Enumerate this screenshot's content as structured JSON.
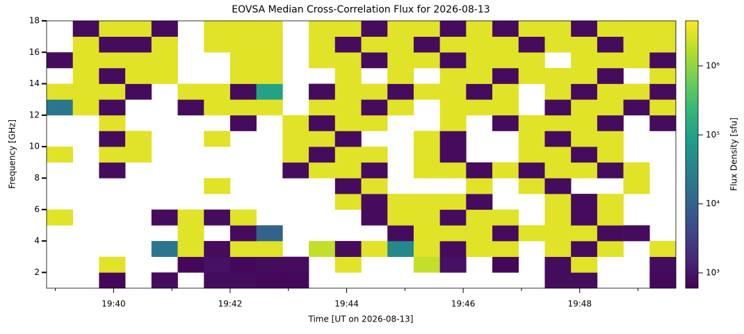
{
  "chart_data": {
    "type": "heatmap",
    "title": "EOVSA Median Cross-Correlation Flux for 2026-08-13",
    "x_label": "Time [UT on 2026-08-13]",
    "y_label": "Frequency [GHz]",
    "colorbar_label": "Flux Density [sfu]",
    "xlim": [
      38.85,
      49.65
    ],
    "xticks": [
      {
        "value": 40,
        "label": "19:40"
      },
      {
        "value": 42,
        "label": "19:42"
      },
      {
        "value": 44,
        "label": "19:44"
      },
      {
        "value": 46,
        "label": "19:46"
      },
      {
        "value": 48,
        "label": "19:48"
      }
    ],
    "xminorticks": [
      39,
      41,
      43,
      45,
      47,
      49
    ],
    "ylim": [
      1,
      18
    ],
    "yticks": [
      2,
      4,
      6,
      8,
      10,
      12,
      14,
      16,
      18
    ],
    "x_edges": [
      38.85,
      39.3,
      39.75,
      40.2,
      40.65,
      41.1,
      41.55,
      42.0,
      42.45,
      42.9,
      43.35,
      43.8,
      44.25,
      44.7,
      45.15,
      45.6,
      46.05,
      46.5,
      46.95,
      47.4,
      47.85,
      48.3,
      48.75,
      49.2,
      49.65
    ],
    "y_edges": [
      1,
      2,
      3,
      4,
      5,
      6,
      7,
      8,
      9,
      10,
      11,
      12,
      13,
      14,
      15,
      16,
      17,
      18
    ],
    "colormap": "viridis",
    "color_scale": "log",
    "clim": [
      600,
      4500000.0
    ],
    "cticks": [
      {
        "value": 1000,
        "label": "10³"
      },
      {
        "value": 10000,
        "label": "10⁴"
      },
      {
        "value": 100000,
        "label": "10⁵"
      },
      {
        "value": 1000000,
        "label": "10⁶"
      }
    ],
    "z": [
      [
        null,
        null,
        700,
        null,
        800,
        null,
        800,
        800,
        700,
        700,
        null,
        null,
        null,
        null,
        null,
        null,
        null,
        null,
        null,
        800,
        800,
        null,
        null,
        700
      ],
      [
        null,
        null,
        3000000.0,
        null,
        null,
        700,
        900,
        700,
        800,
        800,
        null,
        3000000.0,
        null,
        null,
        2000000.0,
        900,
        null,
        700,
        null,
        800,
        3000000.0,
        null,
        null,
        800
      ],
      [
        null,
        null,
        null,
        null,
        20000.0,
        3000000.0,
        800,
        3000000.0,
        3000000.0,
        null,
        2000000.0,
        800,
        3000000.0,
        40000.0,
        3000000.0,
        800,
        3000000.0,
        3000000.0,
        null,
        3000000.0,
        800,
        3000000.0,
        null,
        3000000.0
      ],
      [
        null,
        null,
        null,
        null,
        null,
        3000000.0,
        null,
        800,
        10000.0,
        null,
        null,
        null,
        null,
        800,
        3000000.0,
        3000000.0,
        3000000.0,
        800,
        3000000.0,
        3000000.0,
        3000000.0,
        800,
        800,
        null
      ],
      [
        3000000.0,
        null,
        null,
        null,
        800,
        3000000.0,
        800,
        3000000.0,
        null,
        null,
        null,
        null,
        800,
        3000000.0,
        3000000.0,
        800,
        3000000.0,
        3000000.0,
        null,
        3000000.0,
        800,
        3000000.0,
        null,
        null
      ],
      [
        null,
        null,
        null,
        null,
        null,
        null,
        null,
        null,
        null,
        null,
        null,
        3000000.0,
        800,
        3000000.0,
        3000000.0,
        3000000.0,
        800,
        null,
        null,
        3000000.0,
        800,
        3000000.0,
        null,
        null
      ],
      [
        null,
        null,
        null,
        null,
        null,
        null,
        3000000.0,
        null,
        null,
        null,
        null,
        800,
        3000000.0,
        null,
        null,
        null,
        3000000.0,
        null,
        3000000.0,
        800,
        null,
        null,
        3000000.0,
        null
      ],
      [
        null,
        null,
        800,
        null,
        null,
        null,
        null,
        null,
        null,
        800,
        3000000.0,
        3000000.0,
        800,
        null,
        3000000.0,
        3000000.0,
        800,
        3000000.0,
        800,
        3000000.0,
        3000000.0,
        800,
        3000000.0,
        null
      ],
      [
        3000000.0,
        null,
        3000000.0,
        3000000.0,
        null,
        null,
        null,
        null,
        null,
        3000000.0,
        800,
        3000000.0,
        3000000.0,
        null,
        3000000.0,
        800,
        null,
        null,
        3000000.0,
        3000000.0,
        800,
        3000000.0,
        null,
        null
      ],
      [
        null,
        null,
        800,
        3000000.0,
        null,
        null,
        3000000.0,
        null,
        null,
        3000000.0,
        3000000.0,
        800,
        null,
        null,
        3000000.0,
        800,
        null,
        null,
        3000000.0,
        800,
        3000000.0,
        3000000.0,
        null,
        null
      ],
      [
        null,
        null,
        3000000.0,
        null,
        null,
        null,
        null,
        800,
        null,
        3000000.0,
        800,
        3000000.0,
        3000000.0,
        null,
        null,
        3000000.0,
        null,
        800,
        3000000.0,
        3000000.0,
        3000000.0,
        800,
        null,
        800
      ],
      [
        20000.0,
        3000000.0,
        800,
        null,
        null,
        800,
        3000000.0,
        3000000.0,
        3000000.0,
        null,
        3000000.0,
        3000000.0,
        800,
        3000000.0,
        null,
        3000000.0,
        3000000.0,
        3000000.0,
        null,
        800,
        3000000.0,
        3000000.0,
        800,
        3000000.0
      ],
      [
        3000000.0,
        3000000.0,
        3000000.0,
        800,
        null,
        3000000.0,
        3000000.0,
        800,
        100000.0,
        null,
        800,
        3000000.0,
        3000000.0,
        800,
        3000000.0,
        3000000.0,
        800,
        3000000.0,
        null,
        3000000.0,
        800,
        3000000.0,
        3000000.0,
        800
      ],
      [
        null,
        3000000.0,
        800,
        3000000.0,
        3000000.0,
        null,
        null,
        3000000.0,
        3000000.0,
        null,
        null,
        3000000.0,
        null,
        3000000.0,
        null,
        3000000.0,
        3000000.0,
        800,
        3000000.0,
        3000000.0,
        3000000.0,
        800,
        null,
        3000000.0
      ],
      [
        800,
        3000000.0,
        3000000.0,
        3000000.0,
        3000000.0,
        null,
        null,
        3000000.0,
        3000000.0,
        null,
        3000000.0,
        3000000.0,
        800,
        3000000.0,
        3000000.0,
        800,
        3000000.0,
        3000000.0,
        3000000.0,
        null,
        3000000.0,
        3000000.0,
        3000000.0,
        800
      ],
      [
        null,
        3000000.0,
        800,
        800,
        3000000.0,
        null,
        3000000.0,
        3000000.0,
        3000000.0,
        null,
        3000000.0,
        800,
        3000000.0,
        3000000.0,
        800,
        3000000.0,
        3000000.0,
        3000000.0,
        800,
        3000000.0,
        3000000.0,
        800,
        3000000.0,
        3000000.0
      ],
      [
        null,
        800,
        3000000.0,
        3000000.0,
        800,
        null,
        3000000.0,
        3000000.0,
        3000000.0,
        null,
        3000000.0,
        3000000.0,
        800,
        3000000.0,
        3000000.0,
        800,
        3000000.0,
        800,
        3000000.0,
        3000000.0,
        800,
        3000000.0,
        3000000.0,
        3000000.0
      ]
    ]
  }
}
